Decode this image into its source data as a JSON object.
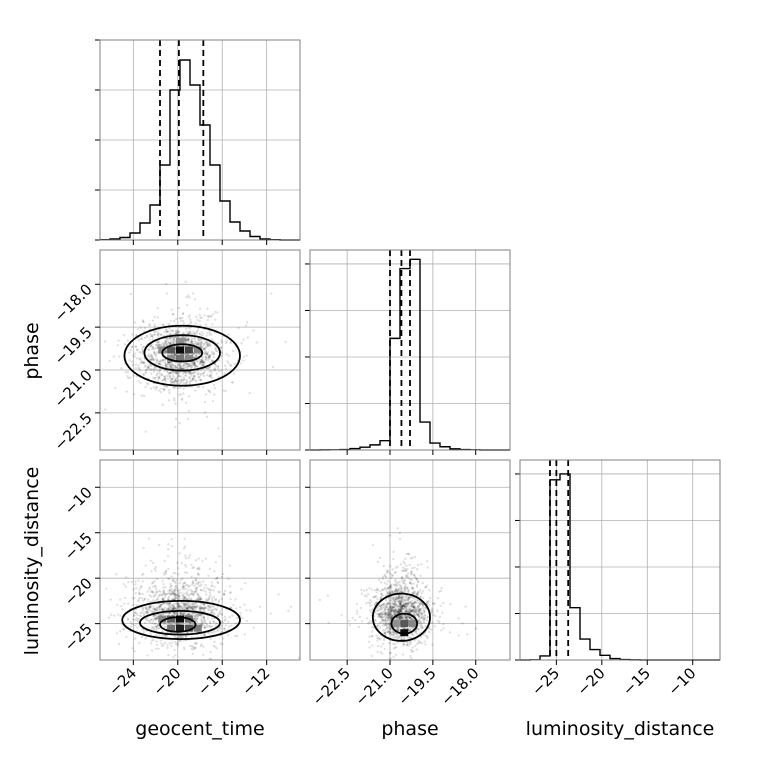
{
  "chart_data": {
    "type": "corner",
    "parameters": [
      "geocent_time",
      "phase",
      "luminosity_distance"
    ],
    "axis_labels": {
      "geocent_time": "geocent_time",
      "phase": "phase",
      "luminosity_distance": "luminosity_distance"
    },
    "ranges": {
      "geocent_time": [
        -27.0,
        -9.0
      ],
      "phase": [
        -23.8,
        -16.8
      ],
      "luminosity_distance": [
        -29.0,
        -7.0
      ]
    },
    "ticks": {
      "geocent_time": [
        -24,
        -20,
        -16,
        -12
      ],
      "phase": [
        -22.5,
        -21.0,
        -19.5,
        -18.0
      ],
      "luminosity_distance": [
        -25,
        -20,
        -15,
        -10
      ]
    },
    "tick_labels": {
      "geocent_time": [
        "−24",
        "−20",
        "−16",
        "−12"
      ],
      "phase": [
        "−22.5",
        "−21.0",
        "−19.5",
        "−18.0"
      ],
      "luminosity_distance": [
        "−25",
        "−20",
        "−15",
        "−10"
      ]
    },
    "grid": true,
    "quantiles": {
      "geocent_time": [
        -21.6,
        -19.9,
        -17.7
      ],
      "phase": [
        -21.0,
        -20.6,
        -20.3
      ],
      "luminosity_distance": [
        -25.7,
        -25.0,
        -23.7
      ]
    },
    "histograms": [
      {
        "param": "geocent_time",
        "edges": [
          -27.0,
          -26.1,
          -25.2,
          -24.3,
          -23.4,
          -22.5,
          -21.6,
          -20.7,
          -19.8,
          -18.9,
          -18.0,
          -17.1,
          -16.2,
          -15.3,
          -14.4,
          -13.5,
          -12.6,
          -11.7,
          -10.8,
          -9.9,
          -9.0
        ],
        "counts": [
          0.5,
          2,
          5,
          14,
          34,
          70,
          150,
          300,
          360,
          310,
          230,
          150,
          78,
          36,
          18,
          7,
          2,
          0.5,
          0,
          0
        ],
        "ymax": 400,
        "yticks": [
          0,
          100,
          200,
          300,
          400
        ]
      },
      {
        "param": "phase",
        "edges": [
          -23.8,
          -23.45,
          -23.1,
          -22.75,
          -22.4,
          -22.05,
          -21.7,
          -21.35,
          -21.0,
          -20.65,
          -20.3,
          -19.95,
          -19.6,
          -19.25,
          -18.9,
          -18.55,
          -18.2,
          -17.85,
          -17.5,
          -17.15,
          -16.8
        ],
        "counts": [
          0,
          0.5,
          1,
          2,
          6,
          12,
          22,
          40,
          480,
          780,
          820,
          120,
          30,
          14,
          5,
          2,
          1,
          0,
          0,
          0
        ],
        "ymax": 860,
        "yticks": [
          0,
          200,
          400,
          600,
          800
        ]
      },
      {
        "param": "luminosity_distance",
        "edges": [
          -29.0,
          -27.9,
          -26.8,
          -25.7,
          -24.6,
          -23.5,
          -22.4,
          -21.3,
          -20.2,
          -19.1,
          -18.0,
          -16.9,
          -15.8,
          -14.7,
          -13.6,
          -12.5,
          -11.4,
          -10.3,
          -9.2,
          -8.1,
          -7.0
        ],
        "counts": [
          0,
          2,
          35,
          1550,
          1600,
          450,
          180,
          90,
          40,
          12,
          4,
          1,
          0,
          0,
          0,
          0,
          0,
          0,
          0,
          0
        ],
        "ymax": 1720,
        "yticks": [
          0,
          400,
          800,
          1200,
          1600
        ]
      }
    ],
    "pairs": [
      {
        "x": "geocent_time",
        "y": "phase",
        "mean": [
          -19.8,
          -20.5
        ],
        "sd": [
          1.9,
          0.55
        ],
        "contours": [
          {
            "cx": -19.6,
            "cy": -20.5,
            "rx": 5.2,
            "ry": 1.05
          },
          {
            "cx": -19.6,
            "cy": -20.4,
            "rx": 3.4,
            "ry": 0.62
          },
          {
            "cx": -19.6,
            "cy": -20.4,
            "rx": 1.8,
            "ry": 0.3
          }
        ],
        "core_cells": [
          {
            "x": -19.8,
            "y": -20.3,
            "v": 1.0
          },
          {
            "x": -19.0,
            "y": -20.3,
            "v": 0.7
          },
          {
            "x": -20.6,
            "y": -20.3,
            "v": 0.6
          },
          {
            "x": -18.2,
            "y": -20.3,
            "v": 0.35
          },
          {
            "x": -21.4,
            "y": -20.3,
            "v": 0.3
          },
          {
            "x": -19.8,
            "y": -20.6,
            "v": 0.45
          },
          {
            "x": -19.0,
            "y": -20.6,
            "v": 0.35
          },
          {
            "x": -20.6,
            "y": -20.6,
            "v": 0.3
          },
          {
            "x": -19.8,
            "y": -20.0,
            "v": 0.3
          }
        ]
      },
      {
        "x": "geocent_time",
        "y": "luminosity_distance",
        "mean": [
          -19.8,
          -24.2
        ],
        "sd": [
          1.9,
          1.6
        ],
        "contours": [
          {
            "cx": -19.7,
            "cy": -24.6,
            "rx": 5.3,
            "ry": 2.1
          },
          {
            "cx": -19.8,
            "cy": -24.9,
            "rx": 3.6,
            "ry": 1.3
          },
          {
            "cx": -20.0,
            "cy": -25.1,
            "rx": 1.6,
            "ry": 0.8
          }
        ],
        "core_cells": [
          {
            "x": -19.8,
            "y": -24.5,
            "v": 1.0
          },
          {
            "x": -19.8,
            "y": -25.5,
            "v": 0.9
          },
          {
            "x": -19.0,
            "y": -25.5,
            "v": 0.6
          },
          {
            "x": -20.6,
            "y": -24.5,
            "v": 0.55
          },
          {
            "x": -18.2,
            "y": -25.5,
            "v": 0.4
          },
          {
            "x": -21.4,
            "y": -24.5,
            "v": 0.35
          },
          {
            "x": -19.0,
            "y": -24.5,
            "v": 0.5
          },
          {
            "x": -20.6,
            "y": -25.5,
            "v": 0.45
          }
        ]
      },
      {
        "x": "phase",
        "y": "luminosity_distance",
        "mean": [
          -20.6,
          -24.3
        ],
        "sd": [
          0.45,
          1.5
        ],
        "contours": [
          {
            "cx": -20.6,
            "cy": -24.3,
            "rx": 1.0,
            "ry": 2.6
          },
          {
            "cx": -20.5,
            "cy": -25.0,
            "rx": 0.45,
            "ry": 1.1
          }
        ],
        "core_cells": [
          {
            "x": -20.5,
            "y": -25.0,
            "v": 0.6
          },
          {
            "x": -20.5,
            "y": -26.0,
            "v": 1.0
          },
          {
            "x": -20.2,
            "y": -25.0,
            "v": 0.35
          },
          {
            "x": -20.8,
            "y": -25.0,
            "v": 0.3
          }
        ]
      }
    ]
  }
}
